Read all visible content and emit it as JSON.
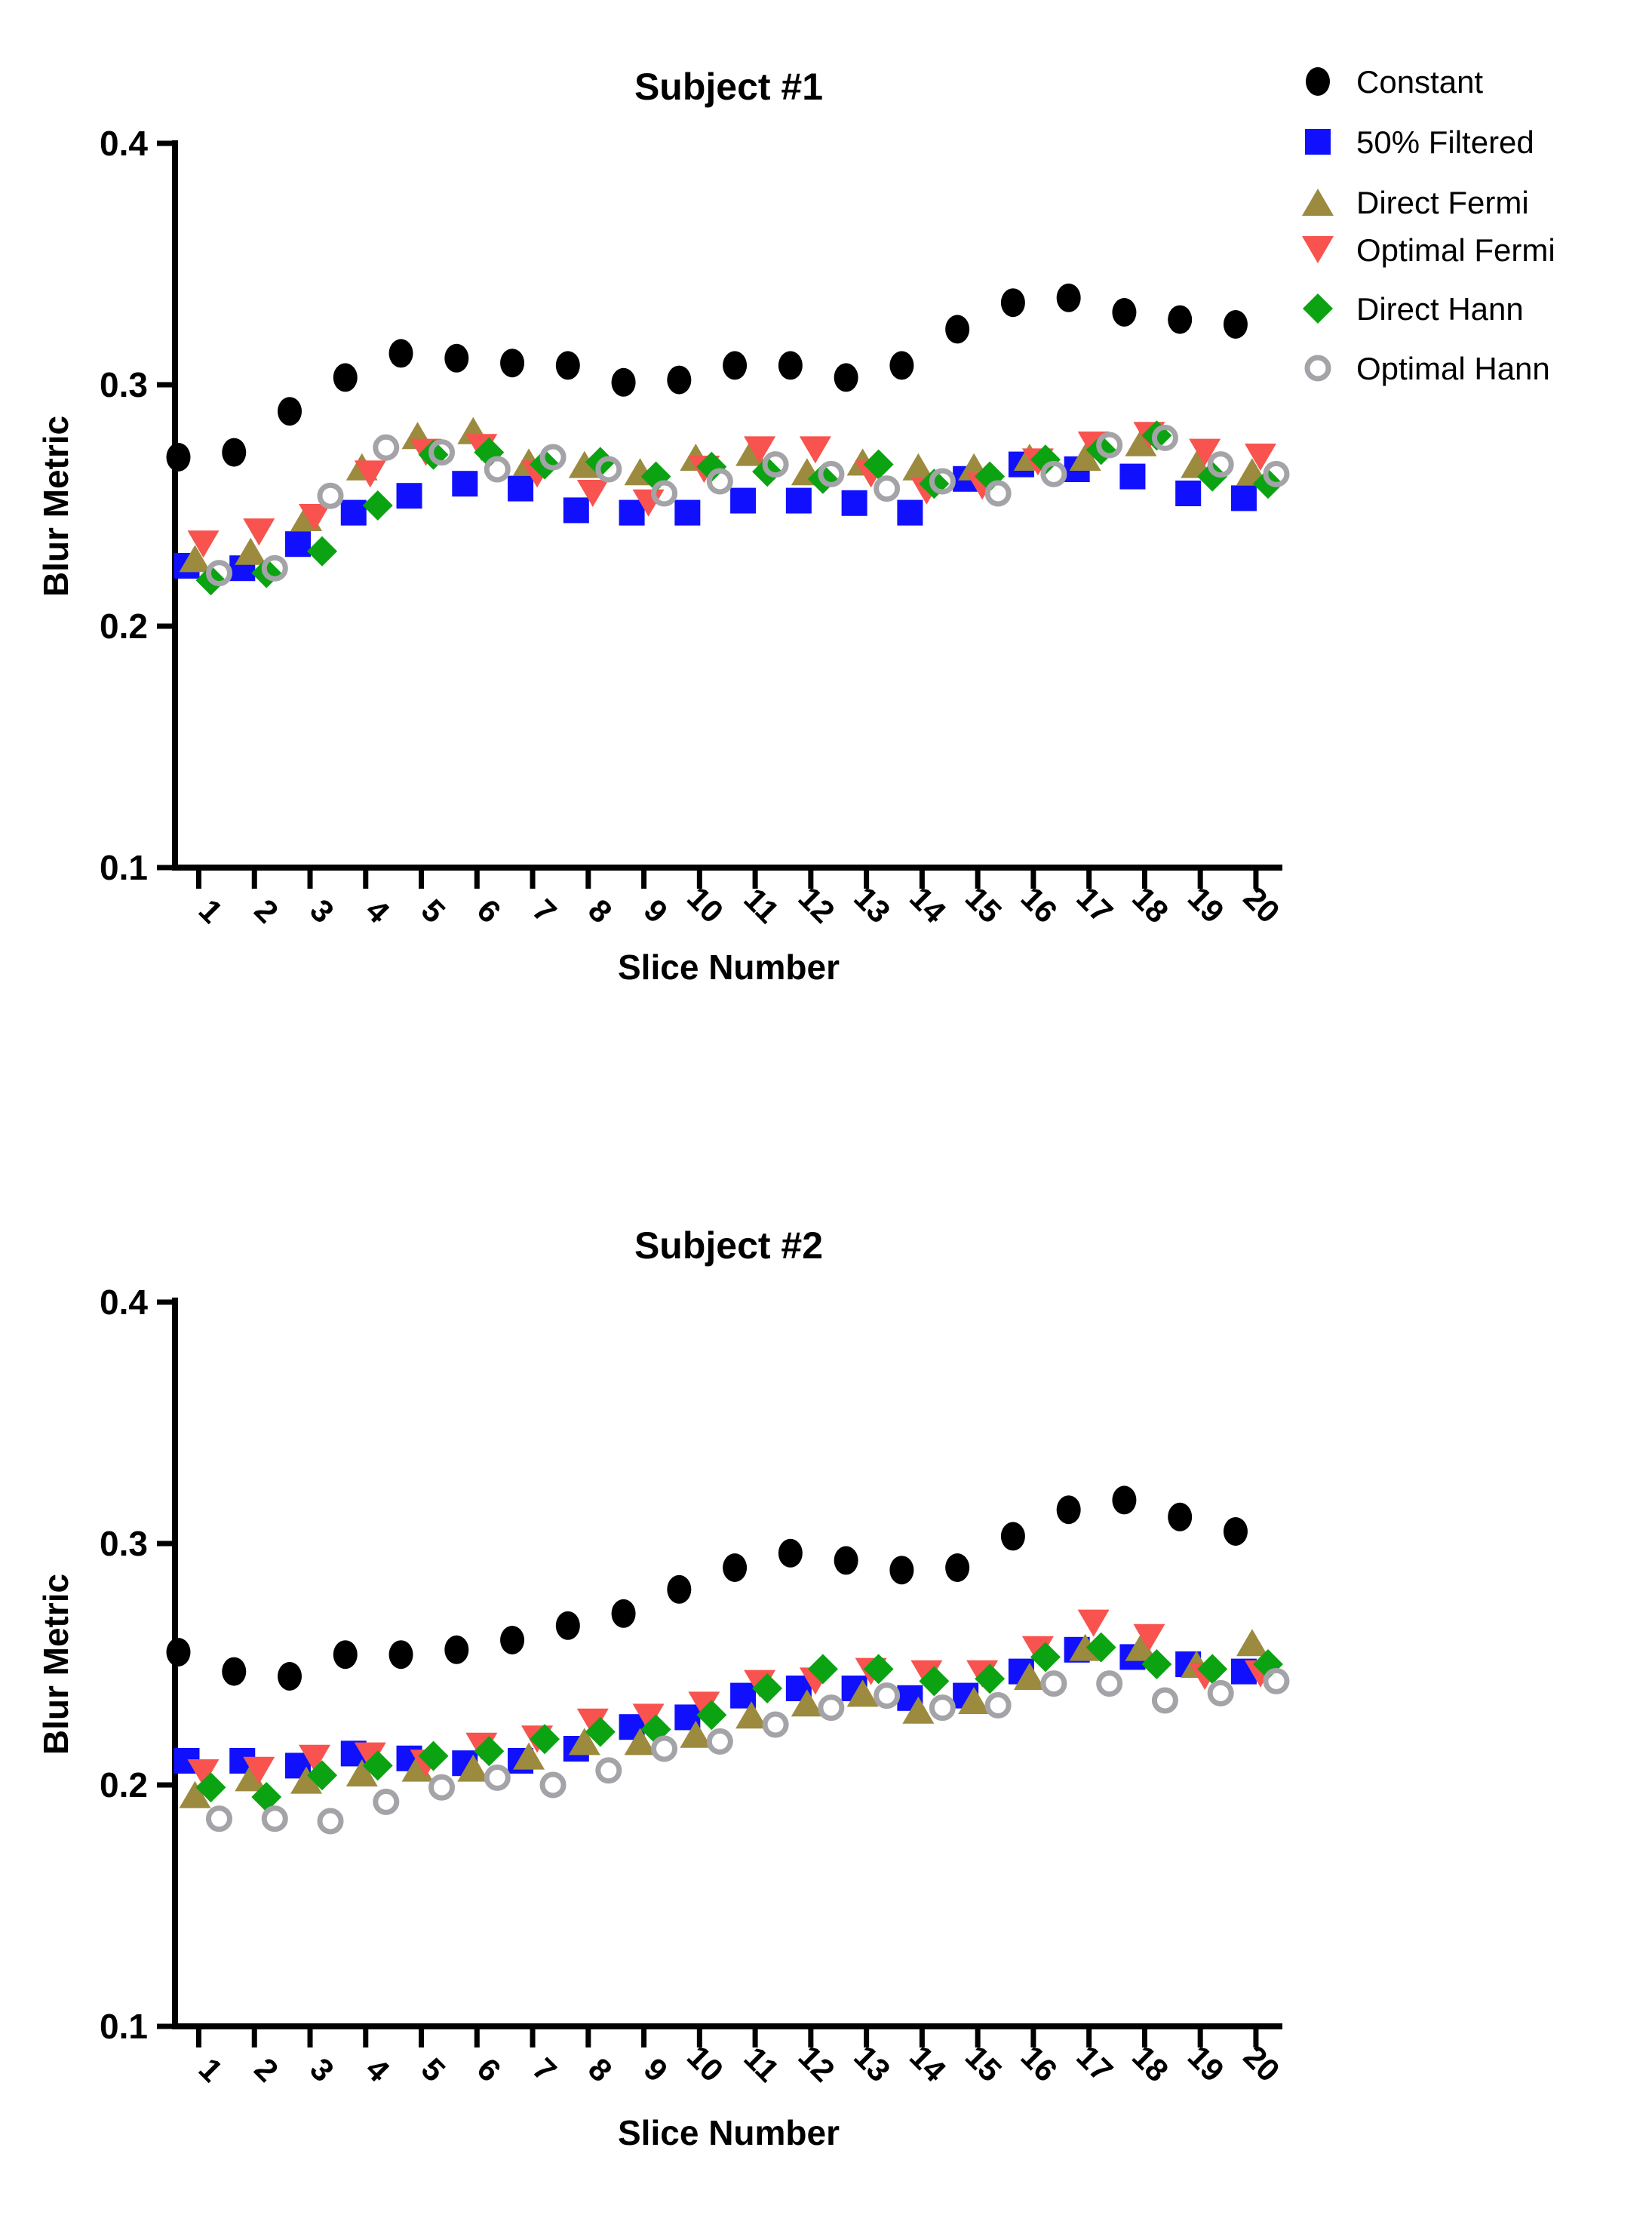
{
  "legend": {
    "items": [
      {
        "label": "Constant",
        "marker": "circle",
        "color": "#000000"
      },
      {
        "label": "50% Filtered",
        "marker": "square",
        "color": "#1010ff"
      },
      {
        "label": "Direct Fermi",
        "marker": "triangle-up",
        "color": "#9c8a3f"
      },
      {
        "label": "Optimal Fermi",
        "marker": "triangle-down",
        "color": "#f8534e"
      },
      {
        "label": "Direct Hann",
        "marker": "diamond",
        "color": "#0ca312"
      },
      {
        "label": "Optimal Hann",
        "marker": "circle-open",
        "color": "#a3a3a8"
      }
    ]
  },
  "chart_data": [
    {
      "type": "scatter",
      "title": "Subject #1",
      "xlabel": "Slice Number",
      "ylabel": "Blur Metric",
      "x": [
        1,
        2,
        3,
        4,
        5,
        6,
        7,
        8,
        9,
        10,
        11,
        12,
        13,
        14,
        15,
        16,
        17,
        18,
        19,
        20
      ],
      "ylim": [
        0.1,
        0.4
      ],
      "yticks": [
        0.1,
        0.2,
        0.3,
        0.4
      ],
      "grid": false,
      "legend_position": "top-right",
      "series": [
        {
          "name": "Constant",
          "marker": "circle",
          "color": "#000000",
          "values": [
            0.27,
            0.272,
            0.289,
            0.303,
            0.313,
            0.311,
            0.309,
            0.308,
            0.301,
            0.302,
            0.308,
            0.308,
            0.303,
            0.308,
            0.323,
            0.334,
            0.336,
            0.33,
            0.327,
            0.325
          ]
        },
        {
          "name": "50% Filtered",
          "marker": "square",
          "color": "#1010ff",
          "values": [
            0.225,
            0.224,
            0.234,
            0.247,
            0.254,
            0.259,
            0.257,
            0.248,
            0.247,
            0.247,
            0.252,
            0.252,
            0.251,
            0.247,
            0.261,
            0.267,
            0.265,
            0.262,
            0.255,
            0.253
          ]
        },
        {
          "name": "Direct Fermi",
          "marker": "triangle-up",
          "color": "#9c8a3f",
          "values": [
            0.228,
            0.231,
            0.245,
            0.266,
            0.279,
            0.281,
            0.268,
            0.267,
            0.264,
            0.27,
            0.272,
            0.264,
            0.268,
            0.266,
            0.266,
            0.27,
            0.27,
            0.276,
            0.267,
            0.264
          ]
        },
        {
          "name": "Optimal Fermi",
          "marker": "triangle-down",
          "color": "#f8534e",
          "values": [
            0.234,
            0.239,
            0.245,
            0.263,
            0.272,
            0.274,
            0.263,
            0.255,
            0.251,
            0.265,
            0.273,
            0.273,
            0.263,
            0.256,
            0.258,
            0.268,
            0.275,
            0.279,
            0.272,
            0.27
          ]
        },
        {
          "name": "Direct Hann",
          "marker": "diamond",
          "color": "#0ca312",
          "values": [
            0.219,
            0.222,
            0.231,
            0.25,
            0.271,
            0.272,
            0.267,
            0.268,
            0.262,
            0.266,
            0.264,
            0.261,
            0.267,
            0.259,
            0.262,
            0.269,
            0.273,
            0.279,
            0.262,
            0.259
          ]
        },
        {
          "name": "Optimal Hann",
          "marker": "circle-open",
          "color": "#a3a3a8",
          "values": [
            0.222,
            0.224,
            0.254,
            0.274,
            0.272,
            0.265,
            0.27,
            0.265,
            0.255,
            0.26,
            0.267,
            0.263,
            0.257,
            0.26,
            0.255,
            0.263,
            0.275,
            0.278,
            0.267,
            0.263
          ]
        }
      ]
    },
    {
      "type": "scatter",
      "title": "Subject #2",
      "xlabel": "Slice Number",
      "ylabel": "Blur Metric",
      "x": [
        1,
        2,
        3,
        4,
        5,
        6,
        7,
        8,
        9,
        10,
        11,
        12,
        13,
        14,
        15,
        16,
        17,
        18,
        19,
        20
      ],
      "ylim": [
        0.1,
        0.4
      ],
      "yticks": [
        0.1,
        0.2,
        0.3,
        0.4
      ],
      "grid": false,
      "legend_position": "none",
      "series": [
        {
          "name": "Constant",
          "marker": "circle",
          "color": "#000000",
          "values": [
            0.255,
            0.247,
            0.245,
            0.254,
            0.254,
            0.256,
            0.26,
            0.266,
            0.271,
            0.281,
            0.29,
            0.296,
            0.293,
            0.289,
            0.29,
            0.303,
            0.314,
            0.318,
            0.311,
            0.305
          ]
        },
        {
          "name": "50% Filtered",
          "marker": "square",
          "color": "#1010ff",
          "values": [
            0.21,
            0.21,
            0.208,
            0.213,
            0.211,
            0.209,
            0.21,
            0.215,
            0.224,
            0.228,
            0.237,
            0.24,
            0.24,
            0.236,
            0.237,
            0.247,
            0.256,
            0.253,
            0.25,
            0.247
          ]
        },
        {
          "name": "Direct Fermi",
          "marker": "triangle-up",
          "color": "#9c8a3f",
          "values": [
            0.196,
            0.203,
            0.202,
            0.205,
            0.207,
            0.207,
            0.212,
            0.218,
            0.218,
            0.221,
            0.229,
            0.234,
            0.238,
            0.231,
            0.235,
            0.245,
            0.257,
            0.257,
            0.25,
            0.259
          ]
        },
        {
          "name": "Optimal Fermi",
          "marker": "triangle-down",
          "color": "#f8534e",
          "values": [
            0.205,
            0.206,
            0.211,
            0.212,
            0.209,
            0.216,
            0.219,
            0.226,
            0.228,
            0.233,
            0.242,
            0.243,
            0.247,
            0.246,
            0.246,
            0.256,
            0.267,
            0.261,
            0.245,
            0.246
          ]
        },
        {
          "name": "Direct Hann",
          "marker": "diamond",
          "color": "#0ca312",
          "values": [
            0.199,
            0.195,
            0.204,
            0.208,
            0.212,
            0.214,
            0.219,
            0.222,
            0.223,
            0.229,
            0.24,
            0.248,
            0.248,
            0.243,
            0.244,
            0.253,
            0.257,
            0.25,
            0.248,
            0.25
          ]
        },
        {
          "name": "Optimal Hann",
          "marker": "circle-open",
          "color": "#a3a3a8",
          "values": [
            0.186,
            0.186,
            0.185,
            0.193,
            0.199,
            0.203,
            0.2,
            0.206,
            0.215,
            0.218,
            0.225,
            0.232,
            0.237,
            0.232,
            0.233,
            0.242,
            0.242,
            0.235,
            0.238,
            0.243
          ]
        }
      ]
    }
  ]
}
